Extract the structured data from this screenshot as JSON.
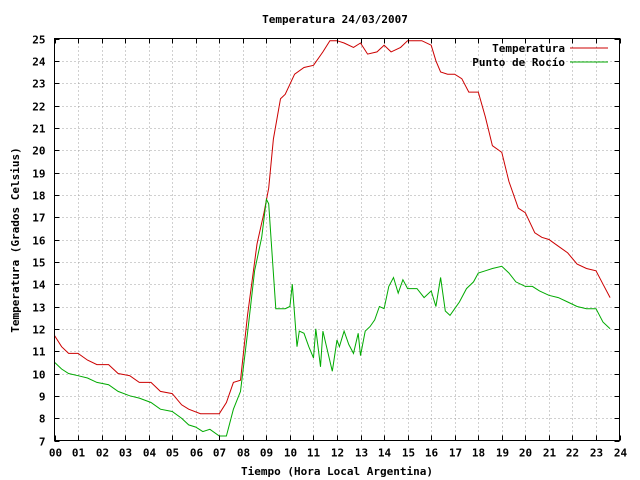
{
  "chart_data": {
    "type": "line",
    "title": "Temperatura 24/03/2007",
    "xlabel": "Tiempo (Hora Local Argentina)",
    "ylabel": "Temperatura (Grados Celsius)",
    "xlim": [
      0,
      24
    ],
    "ylim": [
      7,
      25
    ],
    "x_tick_labels": [
      "00",
      "01",
      "02",
      "03",
      "04",
      "05",
      "06",
      "07",
      "08",
      "09",
      "10",
      "11",
      "12",
      "13",
      "14",
      "15",
      "16",
      "17",
      "18",
      "19",
      "20",
      "21",
      "22",
      "23",
      "24"
    ],
    "y_tick_labels": [
      "7",
      "8",
      "9",
      "10",
      "11",
      "12",
      "13",
      "14",
      "15",
      "16",
      "17",
      "18",
      "19",
      "20",
      "21",
      "22",
      "23",
      "24",
      "25"
    ],
    "grid": true,
    "legend_position": "top-right",
    "colors": {
      "temperatura": "#cc0000",
      "punto_de_rocio": "#00aa00"
    },
    "series": [
      {
        "name": "Temperatura",
        "x": [
          0,
          0.3,
          0.6,
          1.0,
          1.4,
          1.8,
          2.3,
          2.7,
          3.2,
          3.6,
          4.1,
          4.5,
          5.0,
          5.4,
          5.7,
          6.2,
          6.6,
          7.0,
          7.3,
          7.6,
          7.9,
          8.2,
          8.6,
          8.9,
          9.1,
          9.3,
          9.6,
          9.8,
          10.2,
          10.6,
          11.0,
          11.4,
          11.7,
          12.0,
          12.3,
          12.7,
          13.0,
          13.3,
          13.7,
          14.0,
          14.3,
          14.7,
          15.0,
          15.3,
          15.6,
          16.0,
          16.2,
          16.4,
          16.7,
          17.0,
          17.3,
          17.6,
          18.0,
          18.3,
          18.6,
          19.0,
          19.3,
          19.7,
          20.0,
          20.4,
          20.7,
          21.0,
          21.4,
          21.8,
          22.2,
          22.6,
          23.0,
          23.3,
          23.6
        ],
        "y": [
          11.7,
          11.2,
          10.9,
          10.9,
          10.6,
          10.4,
          10.4,
          10.0,
          9.9,
          9.6,
          9.6,
          9.2,
          9.1,
          8.6,
          8.4,
          8.2,
          8.2,
          8.2,
          8.7,
          9.6,
          9.7,
          12.6,
          15.8,
          17.2,
          18.3,
          20.5,
          22.3,
          22.5,
          23.4,
          23.7,
          23.8,
          24.4,
          24.9,
          24.9,
          24.8,
          24.6,
          24.8,
          24.3,
          24.4,
          24.7,
          24.4,
          24.6,
          24.9,
          24.9,
          24.9,
          24.7,
          24.0,
          23.5,
          23.4,
          23.4,
          23.2,
          22.6,
          22.6,
          21.5,
          20.2,
          19.9,
          18.6,
          17.4,
          17.2,
          16.3,
          16.1,
          16.0,
          15.7,
          15.4,
          14.9,
          14.7,
          14.6,
          14.0,
          13.4
        ]
      },
      {
        "name": "Punto de Rocío",
        "x": [
          0,
          0.3,
          0.6,
          1.0,
          1.4,
          1.8,
          2.3,
          2.7,
          3.2,
          3.6,
          4.1,
          4.5,
          5.0,
          5.4,
          5.7,
          6.0,
          6.3,
          6.6,
          7.0,
          7.3,
          7.6,
          7.9,
          8.2,
          8.5,
          8.8,
          9.0,
          9.1,
          9.2,
          9.4,
          9.6,
          9.8,
          10.0,
          10.1,
          10.3,
          10.4,
          10.6,
          10.8,
          11.0,
          11.1,
          11.3,
          11.4,
          11.6,
          11.8,
          12.0,
          12.1,
          12.3,
          12.5,
          12.7,
          12.9,
          13.0,
          13.2,
          13.4,
          13.6,
          13.8,
          14.0,
          14.2,
          14.4,
          14.6,
          14.8,
          15.0,
          15.2,
          15.4,
          15.7,
          16.0,
          16.2,
          16.4,
          16.6,
          16.8,
          17.0,
          17.2,
          17.5,
          17.8,
          18.0,
          18.3,
          18.6,
          19.0,
          19.3,
          19.6,
          20.0,
          20.3,
          20.6,
          21.0,
          21.4,
          21.8,
          22.2,
          22.6,
          23.0,
          23.3,
          23.6
        ],
        "y": [
          10.5,
          10.2,
          10.0,
          9.9,
          9.8,
          9.6,
          9.5,
          9.2,
          9.0,
          8.9,
          8.7,
          8.4,
          8.3,
          8.0,
          7.7,
          7.6,
          7.4,
          7.5,
          7.2,
          7.2,
          8.4,
          9.2,
          11.8,
          14.6,
          16.1,
          17.8,
          17.6,
          16.0,
          12.9,
          12.9,
          12.9,
          13.0,
          14.0,
          11.2,
          11.9,
          11.8,
          11.2,
          10.7,
          12.0,
          10.3,
          11.9,
          11.0,
          10.1,
          11.5,
          11.2,
          11.9,
          11.3,
          10.9,
          11.8,
          10.8,
          11.9,
          12.1,
          12.4,
          13.0,
          12.9,
          13.9,
          14.3,
          13.6,
          14.2,
          13.8,
          13.8,
          13.8,
          13.4,
          13.7,
          13.0,
          14.3,
          12.8,
          12.6,
          12.9,
          13.2,
          13.8,
          14.1,
          14.5,
          14.6,
          14.7,
          14.8,
          14.5,
          14.1,
          13.9,
          13.9,
          13.7,
          13.5,
          13.4,
          13.2,
          13.0,
          12.9,
          12.9,
          12.3,
          12.0
        ]
      }
    ]
  }
}
